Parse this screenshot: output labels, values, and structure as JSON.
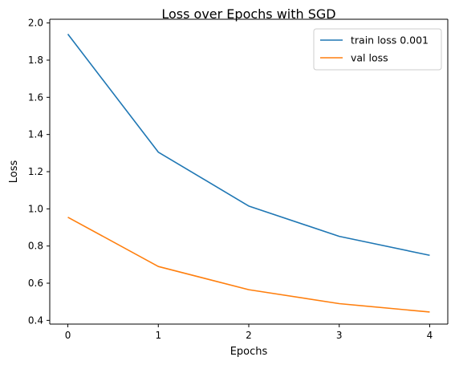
{
  "chart_data": {
    "type": "line",
    "title": "Loss over Epochs with SGD",
    "xlabel": "Epochs",
    "ylabel": "Loss",
    "x": [
      0,
      1,
      2,
      3,
      4
    ],
    "xticks": [
      "0",
      "1",
      "2",
      "3",
      "4"
    ],
    "yticks": [
      "0.4",
      "0.6",
      "0.8",
      "1.0",
      "1.2",
      "1.4",
      "1.6",
      "1.8",
      "2.0"
    ],
    "xlim": [
      -0.2,
      4.2
    ],
    "ylim": [
      0.38,
      2.02
    ],
    "grid": false,
    "legend_position": "top-right",
    "series": [
      {
        "name": "train loss 0.001",
        "color": "#1f77b4",
        "values": [
          1.94,
          1.305,
          1.015,
          0.852,
          0.75
        ]
      },
      {
        "name": "val loss",
        "color": "#ff7f0e",
        "values": [
          0.955,
          0.69,
          0.565,
          0.49,
          0.445
        ]
      }
    ]
  }
}
